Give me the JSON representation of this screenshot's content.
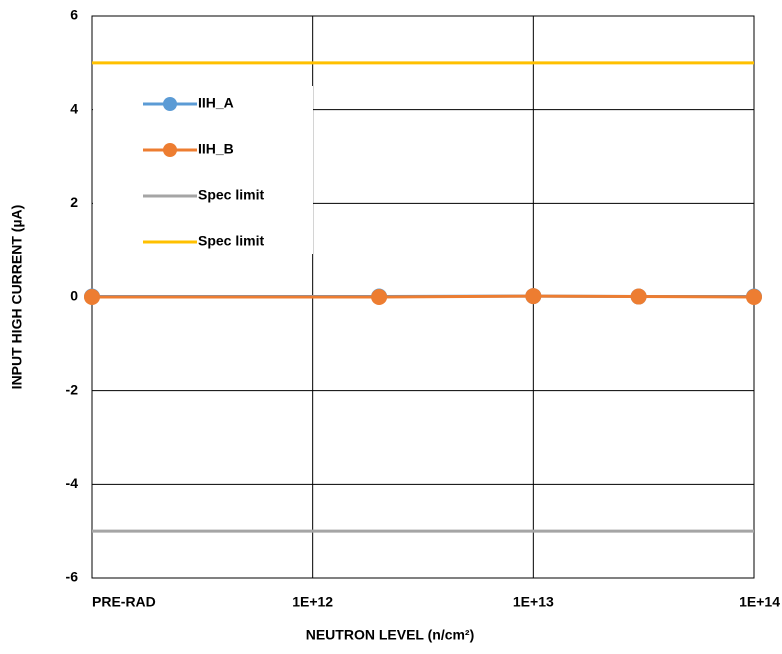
{
  "chart_data": {
    "type": "line",
    "x_label": "NEUTRON LEVEL (n/cm²)",
    "y_label": "INPUT HIGH CURRENT (µA)",
    "x": [
      100000000000,
      2000000000000,
      10000000000000,
      30000000000000,
      100000000000000
    ],
    "xscale": "log",
    "xlim": [
      100000000000,
      100000000000000
    ],
    "xticks": [
      {
        "value": 100000000000,
        "label": "PRE-RAD"
      },
      {
        "value": 1000000000000,
        "label": "1E+12"
      },
      {
        "value": 10000000000000,
        "label": "1E+13"
      },
      {
        "value": 100000000000000,
        "label": "1E+14"
      }
    ],
    "ylim": [
      -6,
      6
    ],
    "yticks": [
      -6,
      -4,
      -2,
      0,
      2,
      4,
      6
    ],
    "grid": true,
    "legend": "upper left",
    "series": [
      {
        "name": "IIH_A",
        "color": "#5b9bd5",
        "marker": true,
        "values": [
          0.01,
          0.01,
          0.02,
          0.01,
          0.01
        ]
      },
      {
        "name": "IIH_B",
        "color": "#ed7d31",
        "marker": true,
        "values": [
          0.0,
          0.0,
          0.02,
          0.01,
          0.0
        ]
      },
      {
        "name": "Spec limit",
        "color": "#a5a5a5",
        "marker": false,
        "values": [
          -5,
          -5,
          -5,
          -5,
          -5
        ]
      },
      {
        "name": "Spec limit",
        "color": "#ffc000",
        "marker": false,
        "values": [
          5,
          5,
          5,
          5,
          5
        ]
      }
    ]
  }
}
